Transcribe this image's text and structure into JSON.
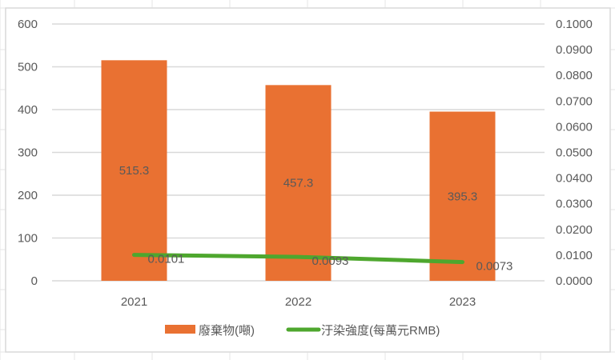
{
  "chart_data": {
    "type": "bar+line",
    "categories": [
      "2021",
      "2022",
      "2023"
    ],
    "series": [
      {
        "name": "廢棄物(噸)",
        "type": "bar",
        "axis": "left",
        "values": [
          515.3,
          457.3,
          395.3
        ],
        "labels": [
          "515.3",
          "457.3",
          "395.3"
        ],
        "color": "#E97132"
      },
      {
        "name": "汙染強度(每萬元RMB)",
        "type": "line",
        "axis": "right",
        "values": [
          0.0101,
          0.0093,
          0.0073
        ],
        "labels": [
          "0.0101",
          "0.0093",
          "0.0073"
        ],
        "color": "#4EA72E"
      }
    ],
    "y_left": {
      "range": [
        0,
        600
      ],
      "ticks": [
        "0",
        "100",
        "200",
        "300",
        "400",
        "500",
        "600"
      ]
    },
    "y_right": {
      "range": [
        0,
        0.1
      ],
      "ticks": [
        "0.0000",
        "0.0100",
        "0.0200",
        "0.0300",
        "0.0400",
        "0.0500",
        "0.0600",
        "0.0700",
        "0.0800",
        "0.0900",
        "0.1000"
      ]
    },
    "grid": true,
    "legend": "bottom",
    "title": "",
    "xlabel": "",
    "ylabel": ""
  }
}
